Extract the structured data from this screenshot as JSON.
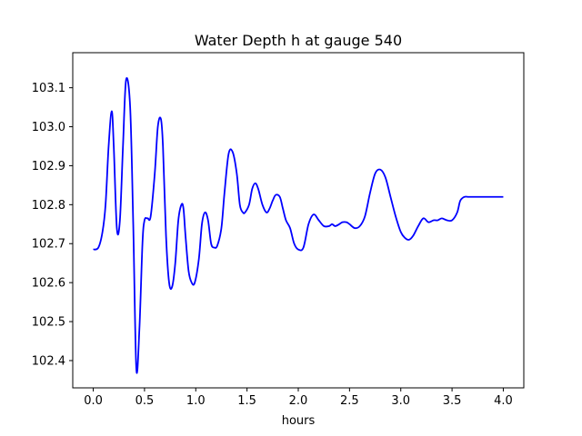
{
  "chart_data": {
    "type": "line",
    "title": "Water Depth h at gauge 540",
    "xlabel": "hours",
    "ylabel": "",
    "xlim": [
      -0.2,
      4.2
    ],
    "ylim": [
      102.33,
      103.19
    ],
    "x_ticks": [
      0.0,
      0.5,
      1.0,
      1.5,
      2.0,
      2.5,
      3.0,
      3.5,
      4.0
    ],
    "x_tick_labels": [
      "0.0",
      "0.5",
      "1.0",
      "1.5",
      "2.0",
      "2.5",
      "3.0",
      "3.5",
      "4.0"
    ],
    "y_ticks": [
      102.4,
      102.5,
      102.6,
      102.7,
      102.8,
      102.9,
      103.0,
      103.1
    ],
    "y_tick_labels": [
      "102.4",
      "102.5",
      "102.6",
      "102.7",
      "102.8",
      "102.9",
      "103.0",
      "103.1"
    ],
    "grid": false,
    "series": [
      {
        "color": "#0000ff",
        "x": [
          0.0,
          0.05,
          0.09,
          0.12,
          0.15,
          0.18,
          0.2,
          0.23,
          0.26,
          0.29,
          0.32,
          0.36,
          0.39,
          0.42,
          0.45,
          0.48,
          0.5,
          0.53,
          0.56,
          0.6,
          0.63,
          0.66,
          0.68,
          0.71,
          0.74,
          0.77,
          0.8,
          0.83,
          0.86,
          0.88,
          0.9,
          0.93,
          0.96,
          0.99,
          1.03,
          1.06,
          1.09,
          1.12,
          1.15,
          1.18,
          1.21,
          1.25,
          1.28,
          1.32,
          1.36,
          1.4,
          1.43,
          1.46,
          1.48,
          1.52,
          1.55,
          1.58,
          1.61,
          1.65,
          1.69,
          1.72,
          1.75,
          1.78,
          1.82,
          1.85,
          1.88,
          1.92,
          1.96,
          2.0,
          2.05,
          2.1,
          2.15,
          2.2,
          2.25,
          2.3,
          2.33,
          2.36,
          2.4,
          2.43,
          2.47,
          2.5,
          2.55,
          2.6,
          2.65,
          2.7,
          2.75,
          2.8,
          2.85,
          2.9,
          2.95,
          3.0,
          3.04,
          3.08,
          3.12,
          3.17,
          3.22,
          3.27,
          3.32,
          3.36,
          3.4,
          3.45,
          3.5,
          3.55,
          3.58,
          3.62,
          3.66,
          3.7,
          3.75,
          3.8,
          3.85,
          3.9,
          3.95,
          4.0
        ],
        "y": [
          102.685,
          102.69,
          102.73,
          102.8,
          102.95,
          103.04,
          102.95,
          102.74,
          102.76,
          102.95,
          103.12,
          103.05,
          102.75,
          102.38,
          102.48,
          102.7,
          102.76,
          102.765,
          102.77,
          102.88,
          103.0,
          103.02,
          102.95,
          102.72,
          102.6,
          102.59,
          102.65,
          102.76,
          102.8,
          102.79,
          102.72,
          102.63,
          102.6,
          102.6,
          102.66,
          102.75,
          102.78,
          102.76,
          102.7,
          102.69,
          102.695,
          102.74,
          102.83,
          102.93,
          102.935,
          102.88,
          102.8,
          102.78,
          102.78,
          102.8,
          102.84,
          102.855,
          102.84,
          102.8,
          102.78,
          102.79,
          102.81,
          102.825,
          102.82,
          102.79,
          102.76,
          102.74,
          102.7,
          102.685,
          102.69,
          102.75,
          102.775,
          102.76,
          102.745,
          102.745,
          102.75,
          102.745,
          102.75,
          102.755,
          102.755,
          102.75,
          102.74,
          102.745,
          102.77,
          102.83,
          102.88,
          102.89,
          102.87,
          102.82,
          102.77,
          102.73,
          102.715,
          102.71,
          102.72,
          102.745,
          102.765,
          102.755,
          102.76,
          102.76,
          102.765,
          102.76,
          102.76,
          102.78,
          102.81,
          102.82,
          102.82,
          102.82,
          102.82,
          102.82,
          102.82,
          102.82,
          102.82,
          102.82
        ]
      }
    ]
  }
}
